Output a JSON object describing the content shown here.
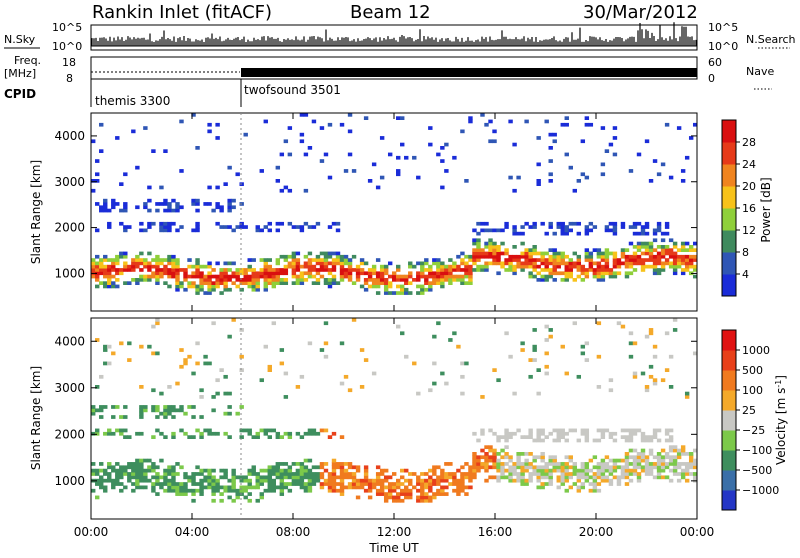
{
  "header": {
    "station": "Rankin Inlet (fitACF)",
    "beam": "Beam 12",
    "date": "30/Mar/2012"
  },
  "top_panels": {
    "nsky_label": "N.Sky",
    "nsky_ticks": [
      "10^5",
      "10^0"
    ],
    "nsearch_label": "N.Search",
    "nsearch_ticks": [
      "10^5",
      "10^0"
    ],
    "freq_label": "Freq.",
    "freq_unit": "[MHz]",
    "freq_ticks": [
      "18",
      "8"
    ],
    "nave_label": "Nave",
    "nave_ticks": [
      "60",
      "0"
    ],
    "cpid_label": "CPID",
    "programs": [
      {
        "name": "themis 3300",
        "start_hour": 0,
        "end_hour": 6
      },
      {
        "name": "twofsound 3501",
        "start_hour": 6,
        "end_hour": 24
      }
    ]
  },
  "chart_data": [
    {
      "type": "heatmap",
      "title": "",
      "xlabel": "Time UT",
      "ylabel": "Slant Range [km]",
      "x_ticks": [
        "00:00",
        "04:00",
        "08:00",
        "12:00",
        "16:00",
        "20:00",
        "00:00"
      ],
      "x_range_hours": [
        0,
        24
      ],
      "y_ticks": [
        "1000",
        "2000",
        "3000",
        "4000"
      ],
      "y_range_km": [
        180,
        4500
      ],
      "colorbar_label": "Power [dB]",
      "colorbar_ticks": [
        "4",
        "8",
        "12",
        "16",
        "20",
        "24",
        "28"
      ],
      "colorbar_range": [
        0,
        32
      ],
      "colors": [
        "#1a2cd8",
        "#2f56b5",
        "#3f8a5e",
        "#8fcf3a",
        "#f7c21a",
        "#f0841f",
        "#e63a19",
        "#d90f10"
      ]
    },
    {
      "type": "heatmap",
      "title": "",
      "xlabel": "Time UT",
      "ylabel": "Slant Range [km]",
      "x_ticks": [
        "00:00",
        "04:00",
        "08:00",
        "12:00",
        "16:00",
        "20:00",
        "00:00"
      ],
      "x_range_hours": [
        0,
        24
      ],
      "y_ticks": [
        "1000",
        "2000",
        "3000",
        "4000"
      ],
      "y_range_km": [
        180,
        4500
      ],
      "colorbar_label": "Velocity [m s",
      "colorbar_label_sup": "-1",
      "colorbar_label_end": "]",
      "colorbar_ticks": [
        "1000",
        "500",
        "100",
        "25",
        "−25",
        "−100",
        "−500",
        "−1000"
      ],
      "colors": [
        "#2436c6",
        "#3a6fa8",
        "#3e8e5e",
        "#7cc94a",
        "#c8c8c4",
        "#f4a92a",
        "#f07a1f",
        "#e8401a",
        "#e01212"
      ]
    }
  ]
}
